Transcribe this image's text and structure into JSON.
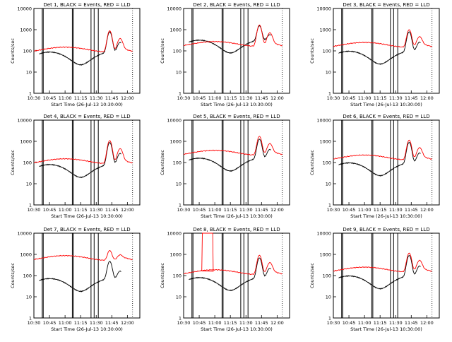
{
  "chart_data": [
    {
      "type": "line",
      "title": "Det 1, BLACK = Events, RED = LLD",
      "xlabel": "Start Time (26-Jul-13 10:30:00)",
      "ylabel": "Counts/sec",
      "x_ticks": [
        "10:30",
        "10:45",
        "11:00",
        "11:15",
        "11:30",
        "11:45",
        "12:00"
      ],
      "y_ticks": [
        "1",
        "10",
        "100",
        "1000",
        "10000"
      ],
      "ylim": [
        1,
        10000
      ],
      "ylog": true,
      "lld_base": 120,
      "evt_base": 55,
      "peak_lld": 800,
      "peak_evt": 700,
      "series": [
        {
          "color": "#000000",
          "values": []
        },
        {
          "color": "#ff0000",
          "values": []
        }
      ]
    },
    {
      "type": "line",
      "title": "Det 2, BLACK = Events, RED = LLD",
      "xlabel": "Start Time (26-Jul-13 10:30:00)",
      "ylabel": "Counts/sec",
      "x_ticks": [
        "10:30",
        "10:45",
        "11:00",
        "11:15",
        "11:30",
        "11:45",
        "12:00"
      ],
      "y_ticks": [
        "1",
        "10",
        "100",
        "1000",
        "10000"
      ],
      "ylim": [
        1,
        10000
      ],
      "ylog": true,
      "lld_base": 220,
      "evt_base": 200,
      "peak_lld": 1500,
      "peak_evt": 1200,
      "series": [
        {
          "color": "#000000",
          "values": []
        },
        {
          "color": "#ff0000",
          "values": []
        }
      ]
    },
    {
      "type": "line",
      "title": "Det 3, BLACK = Events, RED = LLD",
      "xlabel": "Start Time (26-Jul-13 10:30:00)",
      "ylabel": "Counts/sec",
      "x_ticks": [
        "10:30",
        "10:45",
        "11:00",
        "11:15",
        "11:30",
        "11:45",
        "12:00"
      ],
      "y_ticks": [
        "1",
        "10",
        "100",
        "1000",
        "10000"
      ],
      "ylim": [
        1,
        10000
      ],
      "ylog": true,
      "lld_base": 200,
      "evt_base": 60,
      "peak_lld": 850,
      "peak_evt": 700,
      "series": [
        {
          "color": "#000000",
          "values": []
        },
        {
          "color": "#ff0000",
          "values": []
        }
      ]
    },
    {
      "type": "line",
      "title": "Det 4, BLACK = Events, RED = LLD",
      "xlabel": "Start Time (26-Jul-13 10:30:00)",
      "ylabel": "Counts/sec",
      "x_ticks": [
        "10:30",
        "10:45",
        "11:00",
        "11:15",
        "11:30",
        "11:45",
        "12:00"
      ],
      "y_ticks": [
        "1",
        "10",
        "100",
        "1000",
        "10000"
      ],
      "ylim": [
        1,
        10000
      ],
      "ylog": true,
      "lld_base": 120,
      "evt_base": 50,
      "peak_lld": 1000,
      "peak_evt": 800,
      "series": [
        {
          "color": "#000000",
          "values": []
        },
        {
          "color": "#ff0000",
          "values": []
        }
      ]
    },
    {
      "type": "line",
      "title": "Det 5, BLACK = Events, RED = LLD",
      "xlabel": "Start Time (26-Jul-13 10:30:00)",
      "ylabel": "Counts/sec",
      "x_ticks": [
        "10:30",
        "10:45",
        "11:00",
        "11:15",
        "11:30",
        "11:45",
        "12:00"
      ],
      "y_ticks": [
        "1",
        "10",
        "100",
        "1000",
        "10000"
      ],
      "ylim": [
        1,
        10000
      ],
      "ylog": true,
      "lld_base": 300,
      "evt_base": 100,
      "peak_lld": 1500,
      "peak_evt": 1100,
      "series": [
        {
          "color": "#000000",
          "values": []
        },
        {
          "color": "#ff0000",
          "values": []
        }
      ]
    },
    {
      "type": "line",
      "title": "Det 6, BLACK = Events, RED = LLD",
      "xlabel": "Start Time (26-Jul-13 10:30:00)",
      "ylabel": "Counts/sec",
      "x_ticks": [
        "10:30",
        "10:45",
        "11:00",
        "11:15",
        "11:30",
        "11:45",
        "12:00"
      ],
      "y_ticks": [
        "1",
        "10",
        "100",
        "1000",
        "10000"
      ],
      "ylim": [
        1,
        10000
      ],
      "ylog": true,
      "lld_base": 180,
      "evt_base": 60,
      "peak_lld": 1000,
      "peak_evt": 800,
      "series": [
        {
          "color": "#000000",
          "values": []
        },
        {
          "color": "#ff0000",
          "values": []
        }
      ]
    },
    {
      "type": "line",
      "title": "Det 7, BLACK = Events, RED = LLD",
      "xlabel": "Start Time (26-Jul-13 10:30:00)",
      "ylabel": "Counts/sec",
      "x_ticks": [
        "10:30",
        "10:45",
        "11:00",
        "11:15",
        "11:30",
        "11:45",
        "12:00"
      ],
      "y_ticks": [
        "1",
        "10",
        "100",
        "1000",
        "10000"
      ],
      "ylim": [
        1,
        10000
      ],
      "ylog": true,
      "lld_base": 700,
      "evt_base": 45,
      "peak_lld": 1000,
      "peak_evt": 400,
      "series": [
        {
          "color": "#000000",
          "values": []
        },
        {
          "color": "#ff0000",
          "values": []
        }
      ]
    },
    {
      "type": "line",
      "title": "Det 8, BLACK = Events, RED = LLD",
      "xlabel": "Start Time (26-Jul-13 10:30:00)",
      "ylabel": "Counts/sec",
      "x_ticks": [
        "10:30",
        "10:45",
        "11:00",
        "11:15",
        "11:30",
        "11:45",
        "12:00"
      ],
      "y_ticks": [
        "1",
        "10",
        "100",
        "1000",
        "10000"
      ],
      "ylim": [
        1,
        10000
      ],
      "ylog": true,
      "lld_base": 150,
      "evt_base": 50,
      "peak_lld": 800,
      "peak_evt": 600,
      "spike": true,
      "series": [
        {
          "color": "#000000",
          "values": []
        },
        {
          "color": "#ff0000",
          "values": []
        }
      ]
    },
    {
      "type": "line",
      "title": "Det 9, BLACK = Events, RED = LLD",
      "xlabel": "Start Time (26-Jul-13 10:30:00)",
      "ylabel": "Counts/sec",
      "x_ticks": [
        "10:30",
        "10:45",
        "11:00",
        "11:15",
        "11:30",
        "11:45",
        "12:00"
      ],
      "y_ticks": [
        "1",
        "10",
        "100",
        "1000",
        "10000"
      ],
      "ylim": [
        1,
        10000
      ],
      "ylog": true,
      "lld_base": 200,
      "evt_base": 60,
      "peak_lld": 1000,
      "peak_evt": 800,
      "series": [
        {
          "color": "#000000",
          "values": []
        },
        {
          "color": "#ff0000",
          "values": []
        }
      ]
    }
  ]
}
